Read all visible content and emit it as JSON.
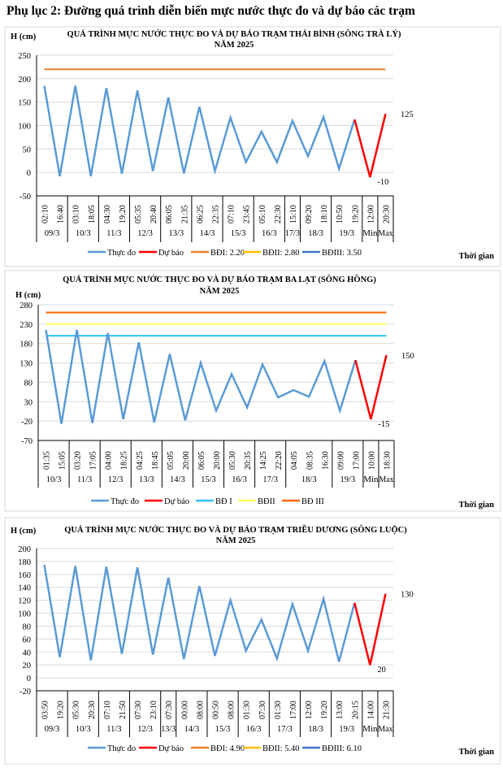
{
  "heading": "Phụ lục 2: Đường quá trình diễn biến mực nước thực đo và dự báo các trạm",
  "chart_data": [
    {
      "type": "line",
      "title": [
        "QUÁ TRÌNH MỰC NƯỚC THỰC ĐO VÀ DỰ BÁO TRẠM THÁI BÌNH (SÔNG TRÀ LÝ)",
        "NĂM 2025"
      ],
      "ylabel": "H (cm)",
      "xlabel": "Thời gian",
      "ylim": [
        -50,
        250
      ],
      "yticks": [
        -50,
        0,
        50,
        100,
        150,
        200,
        250
      ],
      "grid": true,
      "legend_position": "bottom",
      "times": [
        "02:10",
        "16:40",
        "03:10",
        "18:05",
        "04:30",
        "19:20",
        "05:35",
        "20:40",
        "06:05",
        "21:35",
        "06:25",
        "22:35",
        "07:10",
        "23:45",
        "05:10",
        "22:30",
        "15:10",
        "09:20",
        "18:10",
        "10:50",
        "19:20",
        "12:00",
        "20:30"
      ],
      "groups": [
        {
          "label": "09/3",
          "span": 2
        },
        {
          "label": "10/3",
          "span": 2
        },
        {
          "label": "11/3",
          "span": 2
        },
        {
          "label": "12/3",
          "span": 2
        },
        {
          "label": "13/3",
          "span": 2
        },
        {
          "label": "14/3",
          "span": 2
        },
        {
          "label": "15/3",
          "span": 2
        },
        {
          "label": "16/3",
          "span": 2
        },
        {
          "label": "17/3",
          "span": 1
        },
        {
          "label": "18/3",
          "span": 2
        },
        {
          "label": "19/3",
          "span": 2
        },
        {
          "label": "Min",
          "span": 1
        },
        {
          "label": "Max",
          "span": 1
        }
      ],
      "series": [
        {
          "name": "Thực đo",
          "color": "#5b9bd5",
          "values": [
            185,
            -8,
            185,
            -8,
            180,
            -3,
            175,
            3,
            160,
            -2,
            140,
            3,
            117,
            22,
            87,
            22,
            110,
            35,
            118,
            8,
            113,
            null,
            null
          ]
        },
        {
          "name": "Dự báo",
          "color": "#ff0000",
          "values": [
            null,
            null,
            null,
            null,
            null,
            null,
            null,
            null,
            null,
            null,
            null,
            null,
            null,
            null,
            null,
            null,
            null,
            null,
            null,
            null,
            113,
            -10,
            125
          ]
        }
      ],
      "thresholds": [
        {
          "name": "BĐI: 2.20",
          "color": "#ed7d31",
          "value": 220
        },
        {
          "name": "BĐII: 2.80",
          "color": "#ffc000",
          "value": null
        },
        {
          "name": "BĐIII: 3.50",
          "color": "#4472c4",
          "value": null
        }
      ],
      "data_labels": {
        "min": "-10",
        "max": "125"
      }
    },
    {
      "type": "line",
      "title": [
        "QUÁ TRÌNH MỰC NƯỚC THỰC ĐO VÀ DỰ BÁO TRẠM BA LẠT (SÔNG HỒNG)",
        "NĂM 2025"
      ],
      "ylabel": "H (cm)",
      "xlabel": "Thời gian",
      "ylim": [
        -70,
        280
      ],
      "yticks": [
        -70,
        -20,
        30,
        80,
        130,
        180,
        230,
        280
      ],
      "grid": true,
      "legend_position": "bottom",
      "times": [
        "01:35",
        "15:05",
        "03:20",
        "17:05",
        "04:00",
        "18:25",
        "04:25",
        "18:45",
        "05:05",
        "20:00",
        "06:05",
        "20:00",
        "05:30",
        "20:35",
        "14:25",
        "22:20",
        "04:05",
        "08:35",
        "16:30",
        "09:00",
        "17:00",
        "10:00",
        "18:30"
      ],
      "groups": [
        {
          "label": "10/3",
          "span": 2
        },
        {
          "label": "11/3",
          "span": 2
        },
        {
          "label": "12/3",
          "span": 2
        },
        {
          "label": "13/3",
          "span": 2
        },
        {
          "label": "14/3",
          "span": 2
        },
        {
          "label": "15/3",
          "span": 2
        },
        {
          "label": "16/3",
          "span": 2
        },
        {
          "label": "17/3",
          "span": 2
        },
        {
          "label": "18/3",
          "span": 3
        },
        {
          "label": "19/3",
          "span": 2
        },
        {
          "label": "Min",
          "span": 1
        },
        {
          "label": "Max",
          "span": 1
        }
      ],
      "series": [
        {
          "name": "Thực đo",
          "color": "#5b9bd5",
          "values": [
            215,
            -27,
            215,
            -25,
            207,
            -15,
            183,
            -23,
            153,
            -18,
            130,
            7,
            101,
            15,
            126,
            41,
            60,
            43,
            135,
            7,
            137,
            null,
            null
          ]
        },
        {
          "name": "Dự báo",
          "color": "#ff0000",
          "values": [
            null,
            null,
            null,
            null,
            null,
            null,
            null,
            null,
            null,
            null,
            null,
            null,
            null,
            null,
            null,
            null,
            null,
            null,
            null,
            null,
            137,
            -15,
            150
          ]
        }
      ],
      "thresholds": [
        {
          "name": "BĐ I",
          "color": "#31c1f0",
          "value": 200
        },
        {
          "name": "BĐII",
          "color": "#ffff66",
          "value": 230
        },
        {
          "name": "BĐ III",
          "color": "#ff6600",
          "value": 260
        }
      ],
      "data_labels": {
        "min": "-15",
        "max": "150"
      }
    },
    {
      "type": "line",
      "title": [
        "QUÁ TRÌNH MỰC NƯỚC THỰC ĐO VÀ DỰ BÁO TRẠM TRIỀU DƯƠNG  (SÔNG LUỘC)",
        "NĂM 2025"
      ],
      "ylabel": "H (cm)",
      "xlabel": "Thời gian",
      "ylim": [
        -20,
        200
      ],
      "yticks": [
        -20,
        0,
        20,
        40,
        60,
        80,
        100,
        120,
        140,
        160,
        180,
        200
      ],
      "grid": true,
      "legend_position": "bottom",
      "times": [
        "03:50",
        "19:20",
        "05:30",
        "20:30",
        "07:10",
        "21:50",
        "07:30",
        "23:10",
        "07:30",
        "00:00",
        "08:00",
        "00:50",
        "08:00",
        "01:30",
        "07:30",
        "01:30",
        "17:00",
        "12:00",
        "19:20",
        "13:00",
        "20:15",
        "14:00",
        "21:30"
      ],
      "groups": [
        {
          "label": "09/3",
          "span": 2
        },
        {
          "label": "10/3",
          "span": 2
        },
        {
          "label": "11/3",
          "span": 2
        },
        {
          "label": "12/3",
          "span": 2
        },
        {
          "label": "13/3",
          "span": 1
        },
        {
          "label": "14/3",
          "span": 2
        },
        {
          "label": "15/3",
          "span": 2
        },
        {
          "label": "16/3",
          "span": 2
        },
        {
          "label": "17/3",
          "span": 2
        },
        {
          "label": "18/3",
          "span": 2
        },
        {
          "label": "19/3",
          "span": 2
        },
        {
          "label": "Min",
          "span": 1
        },
        {
          "label": "Max",
          "span": 1
        }
      ],
      "series": [
        {
          "name": "Thực đo",
          "color": "#5b9bd5",
          "values": [
            175,
            32,
            173,
            27,
            172,
            37,
            171,
            36,
            155,
            29,
            142,
            34,
            120,
            42,
            90,
            30,
            114,
            42,
            122,
            25,
            116,
            null,
            null
          ]
        },
        {
          "name": "Dự báo",
          "color": "#ff0000",
          "values": [
            null,
            null,
            null,
            null,
            null,
            null,
            null,
            null,
            null,
            null,
            null,
            null,
            null,
            null,
            null,
            null,
            null,
            null,
            null,
            null,
            116,
            20,
            130
          ]
        }
      ],
      "thresholds": [
        {
          "name": "BĐI: 4.90",
          "color": "#ed7d31",
          "value": null
        },
        {
          "name": "BĐII: 5.40",
          "color": "#ffc000",
          "value": null
        },
        {
          "name": "BĐIII: 6.10",
          "color": "#4472c4",
          "value": null
        }
      ],
      "data_labels": {
        "min": "20",
        "max": "130"
      }
    }
  ]
}
